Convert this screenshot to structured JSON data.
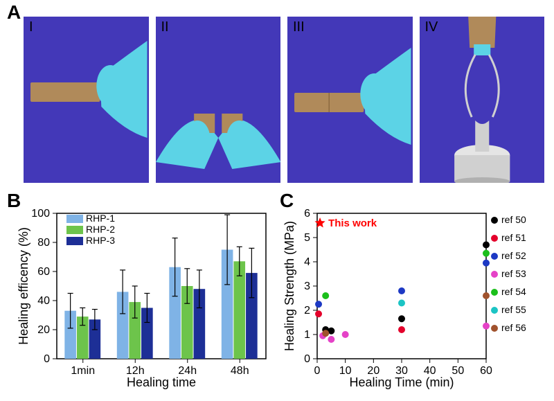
{
  "panelA": {
    "label": "A",
    "photos": [
      {
        "roman": "I",
        "bg": "#4338b8"
      },
      {
        "roman": "II",
        "bg": "#4338b8"
      },
      {
        "roman": "III",
        "bg": "#4338b8"
      },
      {
        "roman": "IV",
        "bg": "#4338b8"
      }
    ],
    "glove_color": "#5cd3e6",
    "strip_color": "#b08a5a",
    "weight_color": "#c8c8c8"
  },
  "panelB": {
    "label": "B",
    "type": "bar",
    "xlabel": "Healing time",
    "ylabel": "Healing efficency (%)",
    "ylabel_fontsize": 18,
    "xlabel_fontsize": 18,
    "categories": [
      "1min",
      "12h",
      "24h",
      "48h"
    ],
    "series": [
      {
        "name": "RHP-1",
        "color": "#7fb3e6",
        "values": [
          33,
          46,
          63,
          75
        ],
        "err": [
          12,
          15,
          20,
          24
        ]
      },
      {
        "name": "RHP-2",
        "color": "#6dc44b",
        "values": [
          29,
          39,
          50,
          67
        ],
        "err": [
          6,
          11,
          12,
          10
        ]
      },
      {
        "name": "RHP-3",
        "color": "#1d2f96",
        "values": [
          27,
          35,
          48,
          59
        ],
        "err": [
          7,
          10,
          13,
          17
        ]
      }
    ],
    "ylim": [
      0,
      100
    ],
    "ytick_step": 20,
    "bar_group_width": 0.7,
    "background": "#ffffff",
    "axis_color": "#000000"
  },
  "panelC": {
    "label": "C",
    "type": "scatter",
    "xlabel": "Healing Time (min)",
    "ylabel": "Healing Strength (MPa)",
    "xlim": [
      0,
      60
    ],
    "ylim": [
      0,
      6
    ],
    "xtick_step": 10,
    "ytick_step": 1,
    "this_work": {
      "label": "This work",
      "color": "#ff0000",
      "points": [
        {
          "x": 1,
          "y": 5.6
        }
      ]
    },
    "refs": [
      {
        "name": "ref 50",
        "color": "#000000",
        "points": [
          {
            "x": 3,
            "y": 1.2
          },
          {
            "x": 5,
            "y": 1.15
          },
          {
            "x": 30,
            "y": 1.65
          },
          {
            "x": 60,
            "y": 4.7
          }
        ]
      },
      {
        "name": "ref 51",
        "color": "#e4002b",
        "points": [
          {
            "x": 0.5,
            "y": 1.85
          },
          {
            "x": 30,
            "y": 1.2
          }
        ]
      },
      {
        "name": "ref 52",
        "color": "#1d39c4",
        "points": [
          {
            "x": 0.5,
            "y": 2.25
          },
          {
            "x": 30,
            "y": 2.8
          },
          {
            "x": 60,
            "y": 3.95
          }
        ]
      },
      {
        "name": "ref 53",
        "color": "#e542c7",
        "points": [
          {
            "x": 2,
            "y": 0.95
          },
          {
            "x": 5,
            "y": 0.8
          },
          {
            "x": 10,
            "y": 1.0
          },
          {
            "x": 60,
            "y": 1.35
          }
        ]
      },
      {
        "name": "ref 54",
        "color": "#1bbf1b",
        "points": [
          {
            "x": 3,
            "y": 2.6
          },
          {
            "x": 60,
            "y": 4.35
          }
        ]
      },
      {
        "name": "ref 55",
        "color": "#1bc4c4",
        "points": [
          {
            "x": 30,
            "y": 2.3
          }
        ]
      },
      {
        "name": "ref 56",
        "color": "#a0522d",
        "points": [
          {
            "x": 3,
            "y": 1.05
          },
          {
            "x": 60,
            "y": 2.6
          }
        ]
      }
    ],
    "marker_radius": 5,
    "background": "#ffffff"
  }
}
